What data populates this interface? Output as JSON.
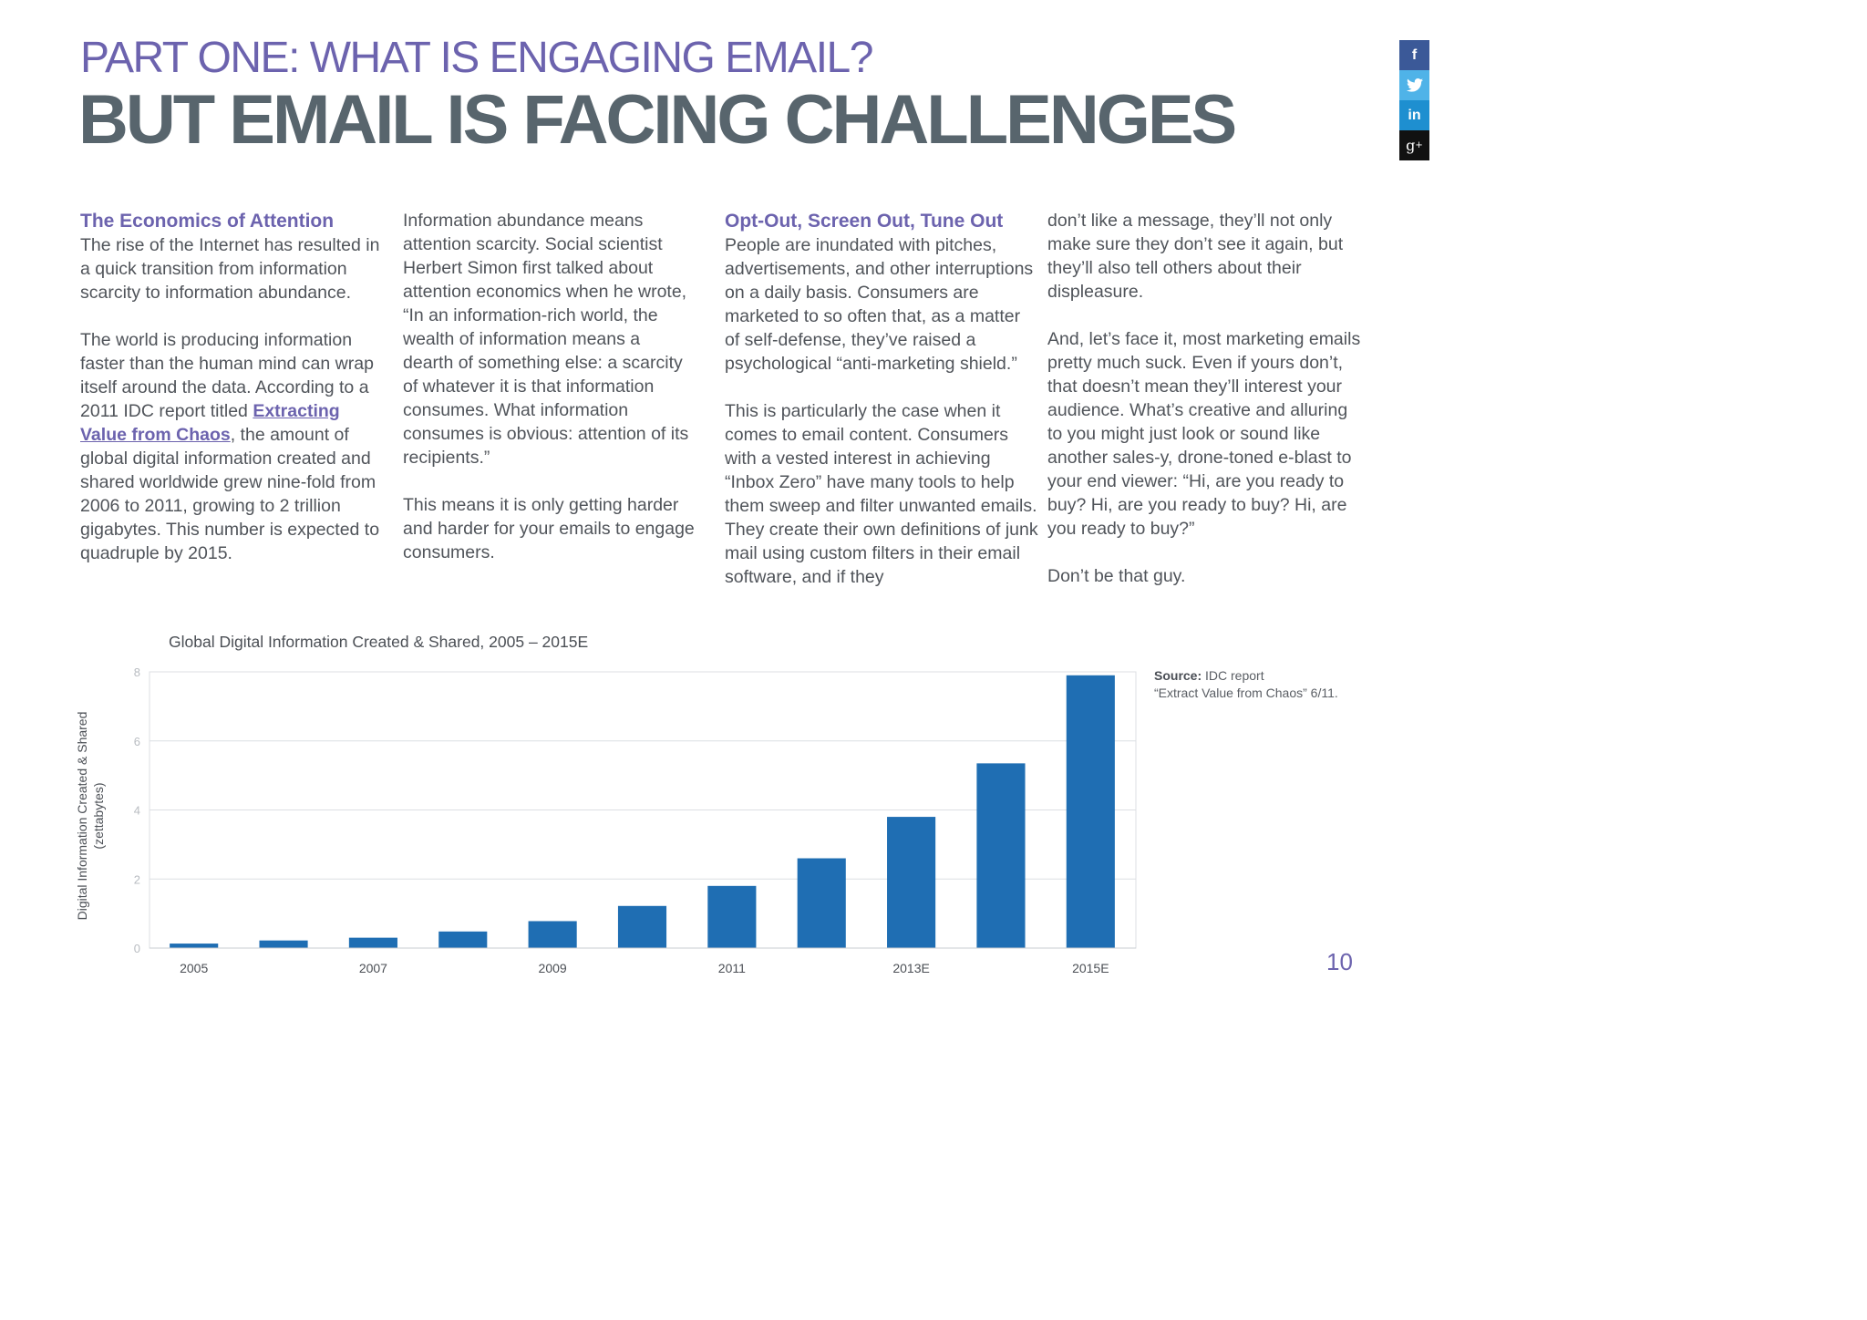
{
  "header": {
    "kicker": "PART ONE: WHAT IS ENGAGING EMAIL?",
    "headline": "BUT EMAIL IS FACING CHALLENGES"
  },
  "social": [
    {
      "name": "facebook-icon",
      "glyph": "f",
      "color": "#3b5998"
    },
    {
      "name": "twitter-icon",
      "glyph": "t",
      "color": "#4fb3e8"
    },
    {
      "name": "linkedin-icon",
      "glyph": "in",
      "color": "#1e8fd0"
    },
    {
      "name": "google-plus-icon",
      "glyph": "g+",
      "color": "#111111"
    }
  ],
  "col1": {
    "heading": "The Economics of Attention",
    "p1": "The rise of the Internet has resulted in a quick transition from information scarcity to information abundance.",
    "p2_before": "The world is producing information faster than the human mind can wrap itself around the data. According to a 2011 IDC report titled ",
    "p2_link": "Extracting Value from Chaos",
    "p2_after": ", the amount of global digital information created and shared worldwide grew nine-fold from 2006 to 2011, growing to 2 trillion gigabytes. This number is expected to quadruple by 2015."
  },
  "col2": {
    "p1": "Information abundance means attention scarcity. Social scientist Herbert Simon first talked about attention economics when he wrote, “In an information-rich world, the wealth of information means a dearth of something else: a scarcity of whatever it is that information consumes. What information consumes is obvious: attention of its recipients.”",
    "p2": "This means it is only getting harder and harder for your emails to engage consumers."
  },
  "col3": {
    "heading": "Opt-Out, Screen Out, Tune Out",
    "p1": "People are inundated with pitches, advertisements, and other interruptions on a daily basis. Consumers are marketed to so often that, as a matter of self-defense, they’ve raised a psychological “anti-marketing shield.”",
    "p2": "This is particularly the case when it comes to email content. Consumers with a vested interest in achieving “Inbox Zero” have many tools to help them sweep and filter unwanted emails. They create their own definitions of junk mail using custom filters in their email software, and if they"
  },
  "col4": {
    "p1": "don’t like a message, they’ll not only make sure they don’t see it again, but they’ll also tell others about their displeasure.",
    "p2": "And, let’s face it, most marketing emails pretty much suck. Even if yours don’t, that doesn’t mean they’ll interest your audience. What’s creative and alluring to you might just look or sound like another sales-y, drone-toned e-blast to your end viewer: “Hi, are you ready to buy? Hi, are you ready to buy? Hi, are you ready to buy?”",
    "p3": "Don’t be that guy."
  },
  "source": {
    "label": "Source:",
    "text": " IDC report",
    "text2": "“Extract Value from Chaos” 6/11."
  },
  "page_number": "10",
  "chart_data": {
    "type": "bar",
    "title": "Global Digital Information Created & Shared, 2005 – 2015E",
    "ylabel_line1": "Digital Information Created & Shared",
    "ylabel_line2": "(zettabytes)",
    "xlabel": "",
    "categories": [
      "2005",
      "2006",
      "2007",
      "2008",
      "2009",
      "2010",
      "2011",
      "2012",
      "2013E",
      "2014E",
      "2015E"
    ],
    "tick_labels": [
      "2005",
      "",
      "2007",
      "",
      "2009",
      "",
      "2011",
      "",
      "2013E",
      "",
      "2015E"
    ],
    "values": [
      0.13,
      0.22,
      0.3,
      0.48,
      0.78,
      1.22,
      1.8,
      2.6,
      3.8,
      5.35,
      7.9
    ],
    "yticks": [
      0,
      2,
      4,
      6,
      8
    ],
    "ylim": [
      0,
      8
    ],
    "grid": true,
    "bar_color": "#1f6eb3"
  }
}
